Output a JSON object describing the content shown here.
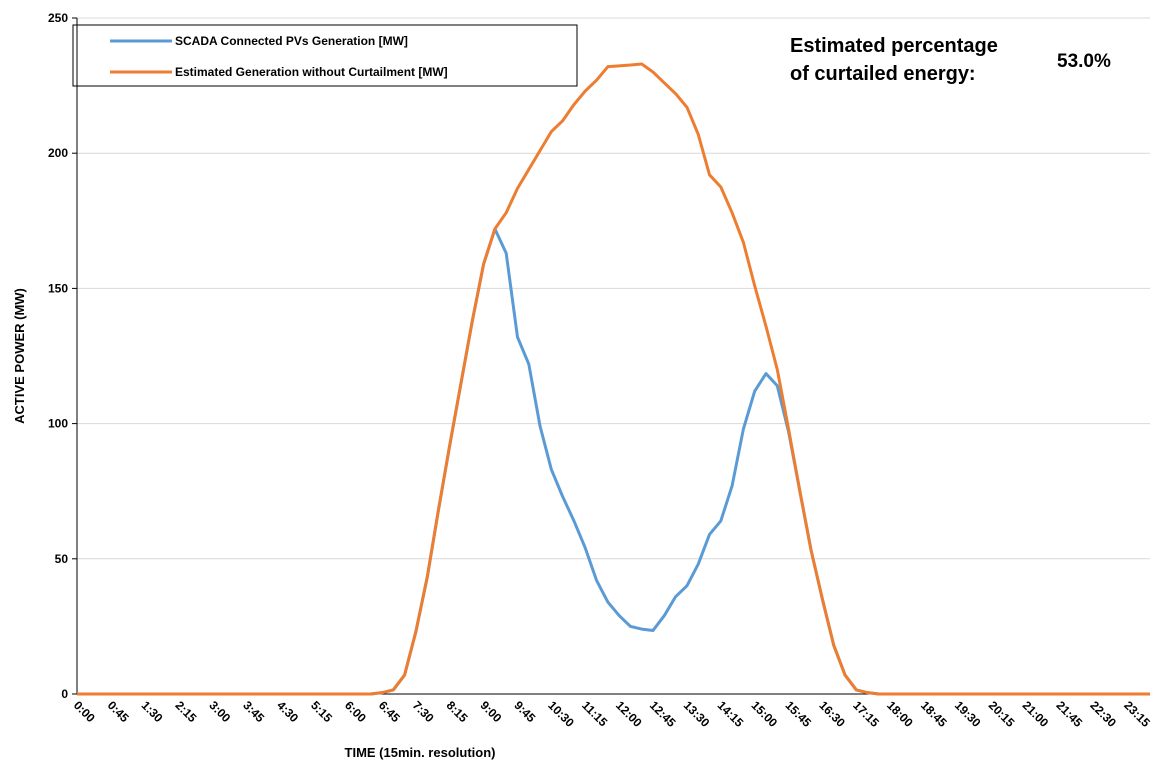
{
  "chart_data": {
    "type": "line",
    "x_label": "TIME (15min. resolution)",
    "y_label": "ACTIVE POWER (MW)",
    "annotation": {
      "lines": [
        "Estimated percentage",
        "of curtailed energy:"
      ],
      "value": "53.0%"
    },
    "categories": [
      "0:00",
      null,
      null,
      "0:45",
      null,
      null,
      "1:30",
      null,
      null,
      "2:15",
      null,
      null,
      "3:00",
      null,
      null,
      "3:45",
      null,
      null,
      "4:30",
      null,
      null,
      "5:15",
      null,
      null,
      "6:00",
      null,
      null,
      "6:45",
      null,
      null,
      "7:30",
      null,
      null,
      "8:15",
      null,
      null,
      "9:00",
      null,
      null,
      "9:45",
      null,
      null,
      "10:30",
      null,
      null,
      "11:15",
      null,
      null,
      "12:00",
      null,
      null,
      "12:45",
      null,
      null,
      "13:30",
      null,
      null,
      "14:15",
      null,
      null,
      "15:00",
      null,
      null,
      "15:45",
      null,
      null,
      "16:30",
      null,
      null,
      "17:15",
      null,
      null,
      "18:00",
      null,
      null,
      "18:45",
      null,
      null,
      "19:30",
      null,
      null,
      "20:15",
      null,
      null,
      "21:00",
      null,
      null,
      "21:45",
      null,
      null,
      "22:30",
      null,
      null,
      "23:15",
      null,
      null
    ],
    "series": [
      {
        "name": "SCADA Connected PVs Generation [MW]",
        "color": "#5b9bd5",
        "values": [
          0,
          0,
          0,
          0,
          0,
          0,
          0,
          0,
          0,
          0,
          0,
          0,
          0,
          0,
          0,
          0,
          0,
          0,
          0,
          0,
          0,
          0,
          0,
          0,
          0,
          0,
          0,
          0.5,
          1.5,
          7,
          23,
          43,
          68,
          92,
          115,
          138,
          159,
          172,
          163,
          132,
          122,
          99,
          83,
          73,
          64,
          54,
          42,
          34,
          29,
          25,
          24,
          23.5,
          29,
          36,
          40,
          48,
          59,
          64,
          77,
          98,
          112,
          118.5,
          114,
          97,
          75,
          53,
          35,
          18,
          7,
          1.5,
          0.5,
          0,
          0,
          0,
          0,
          0,
          0,
          0,
          0,
          0,
          0,
          0,
          0,
          0,
          0,
          0,
          0,
          0,
          0,
          0,
          0,
          0,
          0,
          0,
          0,
          0
        ]
      },
      {
        "name": "Estimated Generation without Curtailment [MW]",
        "color": "#ed7d31",
        "values": [
          0,
          0,
          0,
          0,
          0,
          0,
          0,
          0,
          0,
          0,
          0,
          0,
          0,
          0,
          0,
          0,
          0,
          0,
          0,
          0,
          0,
          0,
          0,
          0,
          0,
          0,
          0,
          0.5,
          1.5,
          7,
          23,
          43,
          68,
          92,
          115,
          138,
          159,
          172,
          178,
          187,
          194,
          201,
          208,
          212,
          218,
          223,
          227,
          232,
          232.3,
          232.6,
          233,
          230,
          226,
          222,
          217,
          207,
          192,
          187.5,
          178,
          167,
          151,
          136,
          120,
          98,
          75,
          53,
          35,
          18,
          7,
          1.5,
          0.5,
          0,
          0,
          0,
          0,
          0,
          0,
          0,
          0,
          0,
          0,
          0,
          0,
          0,
          0,
          0,
          0,
          0,
          0,
          0,
          0,
          0,
          0,
          0,
          0,
          0
        ]
      }
    ],
    "ylim": [
      0,
      250
    ],
    "yticks": [
      0,
      50,
      100,
      150,
      200,
      250
    ],
    "grid": true
  }
}
